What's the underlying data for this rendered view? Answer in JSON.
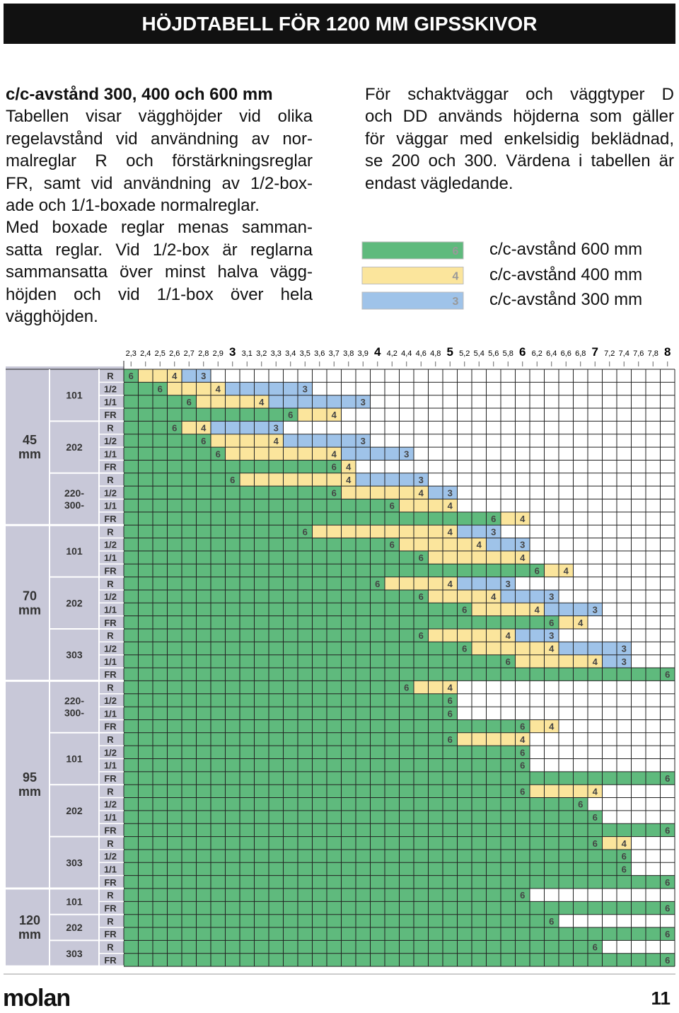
{
  "header": {
    "title": "HÖJDTABELL FÖR 1200 MM GIPSSKIVOR"
  },
  "intro": {
    "heading": "c/c-avstånd 300, 400 och 600 mm",
    "paragraphs": [
      [
        "Tabellen visar vägghöjder vid olika",
        "regelavstånd vid användning av nor-",
        "malreglar R och förstärkningsreglar",
        "FR, samt vid användning av 1/2-box-",
        "ade och 1/1-boxade normalreglar."
      ],
      [
        "Med boxade reglar menas samman-",
        "satta reglar. Vid 1/2-box är reglarna",
        "sammansatta över minst halva vägg-",
        "höjden och vid 1/1-box över hela",
        "vägghöjden."
      ]
    ]
  },
  "note": {
    "lines": [
      "För schaktväggar och väggtyper D",
      "och DD används höjderna som gäller",
      "för väggar med enkelsidig beklädnad,",
      "se 200 och 300. Värdena i tabellen är",
      "endast vägledande."
    ]
  },
  "legend": [
    {
      "mark": "6",
      "label": "c/c-avstånd 600 mm",
      "color": "#5fba7d"
    },
    {
      "mark": "4",
      "label": "c/c-avstånd 400 mm",
      "color": "#fbe59c"
    },
    {
      "mark": "3",
      "label": "c/c-avstånd 300 mm",
      "color": "#9fc3e9"
    }
  ],
  "table": {
    "heights": [
      {
        "value": 2.3,
        "label": "2,3"
      },
      {
        "value": 2.4,
        "label": "2,4"
      },
      {
        "value": 2.5,
        "label": "2,5"
      },
      {
        "value": 2.6,
        "label": "2,6"
      },
      {
        "value": 2.7,
        "label": "2,7"
      },
      {
        "value": 2.8,
        "label": "2,8"
      },
      {
        "value": 2.9,
        "label": "2,9"
      },
      3,
      {
        "value": 3.1,
        "label": "3,1"
      },
      {
        "value": 3.2,
        "label": "3,2"
      },
      {
        "value": 3.3,
        "label": "3,3"
      },
      {
        "value": 3.4,
        "label": "3,4"
      },
      {
        "value": 3.5,
        "label": "3,5"
      },
      {
        "value": 3.6,
        "label": "3,6"
      },
      {
        "value": 3.7,
        "label": "3,7"
      },
      {
        "value": 3.8,
        "label": "3,8"
      },
      {
        "value": 3.9,
        "label": "3,9"
      },
      4,
      {
        "value": 4.2,
        "label": "4,2"
      },
      {
        "value": 4.4,
        "label": "4,4"
      },
      {
        "value": 4.6,
        "label": "4,6"
      },
      {
        "value": 4.8,
        "label": "4,8"
      },
      5,
      {
        "value": 5.2,
        "label": "5,2"
      },
      {
        "value": 5.4,
        "label": "5,4"
      },
      {
        "value": 5.6,
        "label": "5,6"
      },
      {
        "value": 5.8,
        "label": "5,8"
      },
      6,
      {
        "value": 6.2,
        "label": "6,2"
      },
      {
        "value": 6.4,
        "label": "6,4"
      },
      {
        "value": 6.6,
        "label": "6,6"
      },
      {
        "value": 6.8,
        "label": "6,8"
      },
      7,
      {
        "value": 7.2,
        "label": "7,2"
      },
      {
        "value": 7.4,
        "label": "7,4"
      },
      {
        "value": 7.6,
        "label": "7,6"
      },
      {
        "value": 7.8,
        "label": "7,8"
      },
      8
    ],
    "sections": [
      {
        "label": [
          "45",
          "mm"
        ],
        "groups": [
          {
            "label": [
              "101"
            ],
            "rows": [
              {
                "type": "R",
                "max": [
                  2.3,
                  2.6,
                  2.8
                ]
              },
              {
                "type": "1/2",
                "max": [
                  2.5,
                  2.9,
                  3.5
                ]
              },
              {
                "type": "1/1",
                "max": [
                  2.7,
                  3.2,
                  3.9
                ]
              },
              {
                "type": "FR",
                "max": [
                  3.4,
                  3.7,
                  null
                ]
              }
            ]
          },
          {
            "label": [
              "202"
            ],
            "rows": [
              {
                "type": "R",
                "max": [
                  2.6,
                  2.8,
                  3.3
                ]
              },
              {
                "type": "1/2",
                "max": [
                  2.8,
                  3.3,
                  3.9
                ]
              },
              {
                "type": "1/1",
                "max": [
                  2.9,
                  3.7,
                  4.4
                ]
              },
              {
                "type": "FR",
                "max": [
                  3.7,
                  3.8,
                  null
                ]
              }
            ]
          },
          {
            "label": [
              "220-",
              "300-"
            ],
            "rows": [
              {
                "type": "R",
                "max": [
                  3,
                  3.8,
                  4.6
                ]
              },
              {
                "type": "1/2",
                "max": [
                  3.7,
                  4.6,
                  5
                ]
              },
              {
                "type": "1/1",
                "max": [
                  4.2,
                  5,
                  null
                ]
              },
              {
                "type": "FR",
                "max": [
                  5.6,
                  6,
                  null
                ]
              }
            ]
          }
        ]
      },
      {
        "label": [
          "70",
          "mm"
        ],
        "groups": [
          {
            "label": [
              "101"
            ],
            "rows": [
              {
                "type": "R",
                "max": [
                  3.5,
                  5,
                  5.6
                ]
              },
              {
                "type": "1/2",
                "max": [
                  4.2,
                  5.4,
                  6
                ]
              },
              {
                "type": "1/1",
                "max": [
                  4.6,
                  6,
                  null
                ]
              },
              {
                "type": "FR",
                "max": [
                  6.2,
                  6.6,
                  null
                ]
              }
            ]
          },
          {
            "label": [
              "202"
            ],
            "rows": [
              {
                "type": "R",
                "max": [
                  4,
                  5,
                  5.8
                ]
              },
              {
                "type": "1/2",
                "max": [
                  4.6,
                  5.6,
                  6.4
                ]
              },
              {
                "type": "1/1",
                "max": [
                  5.2,
                  6.2,
                  7
                ]
              },
              {
                "type": "FR",
                "max": [
                  6.4,
                  6.8,
                  null
                ]
              }
            ]
          },
          {
            "label": [
              "303"
            ],
            "rows": [
              {
                "type": "R",
                "max": [
                  4.6,
                  5.8,
                  6.4
                ]
              },
              {
                "type": "1/2",
                "max": [
                  5.2,
                  6.4,
                  7.4
                ]
              },
              {
                "type": "1/1",
                "max": [
                  5.8,
                  7,
                  7.4
                ]
              },
              {
                "type": "FR",
                "max": [
                  8,
                  null,
                  null
                ]
              }
            ]
          }
        ]
      },
      {
        "label": [
          "95",
          "mm"
        ],
        "groups": [
          {
            "label": [
              "220-",
              "300-"
            ],
            "rows": [
              {
                "type": "R",
                "max": [
                  4.4,
                  5,
                  null
                ]
              },
              {
                "type": "1/2",
                "max": [
                  5,
                  null,
                  null
                ]
              },
              {
                "type": "1/1",
                "max": [
                  5,
                  null,
                  null
                ]
              },
              {
                "type": "FR",
                "max": [
                  6,
                  6.4,
                  null
                ]
              }
            ]
          },
          {
            "label": [
              "101"
            ],
            "rows": [
              {
                "type": "R",
                "max": [
                  5,
                  6,
                  null
                ]
              },
              {
                "type": "1/2",
                "max": [
                  6,
                  null,
                  null
                ]
              },
              {
                "type": "1/1",
                "max": [
                  6,
                  null,
                  null
                ]
              },
              {
                "type": "FR",
                "max": [
                  8,
                  null,
                  null
                ]
              }
            ]
          },
          {
            "label": [
              "202"
            ],
            "rows": [
              {
                "type": "R",
                "max": [
                  6,
                  7,
                  null
                ]
              },
              {
                "type": "1/2",
                "max": [
                  6.8,
                  null,
                  null
                ]
              },
              {
                "type": "1/1",
                "max": [
                  7,
                  null,
                  null
                ]
              },
              {
                "type": "FR",
                "max": [
                  8,
                  null,
                  null
                ]
              }
            ]
          },
          {
            "label": [
              "303"
            ],
            "rows": [
              {
                "type": "R",
                "max": [
                  7,
                  7.4,
                  null
                ]
              },
              {
                "type": "1/2",
                "max": [
                  7.4,
                  null,
                  null
                ]
              },
              {
                "type": "1/1",
                "max": [
                  7.4,
                  null,
                  null
                ]
              },
              {
                "type": "FR",
                "max": [
                  8,
                  null,
                  null
                ]
              }
            ]
          }
        ]
      },
      {
        "label": [
          "120",
          "mm"
        ],
        "groups": [
          {
            "label": [
              "101"
            ],
            "rows": [
              {
                "type": "R",
                "max": [
                  6,
                  null,
                  null
                ]
              },
              {
                "type": "FR",
                "max": [
                  8,
                  null,
                  null
                ]
              }
            ]
          },
          {
            "label": [
              "202"
            ],
            "rows": [
              {
                "type": "R",
                "max": [
                  6.4,
                  null,
                  null
                ]
              },
              {
                "type": "FR",
                "max": [
                  8,
                  null,
                  null
                ]
              }
            ]
          },
          {
            "label": [
              "303"
            ],
            "rows": [
              {
                "type": "R",
                "max": [
                  7,
                  null,
                  null
                ]
              },
              {
                "type": "FR",
                "max": [
                  8,
                  null,
                  null
                ]
              }
            ]
          }
        ]
      }
    ]
  },
  "footer": {
    "brand": "molan",
    "page": "11"
  }
}
